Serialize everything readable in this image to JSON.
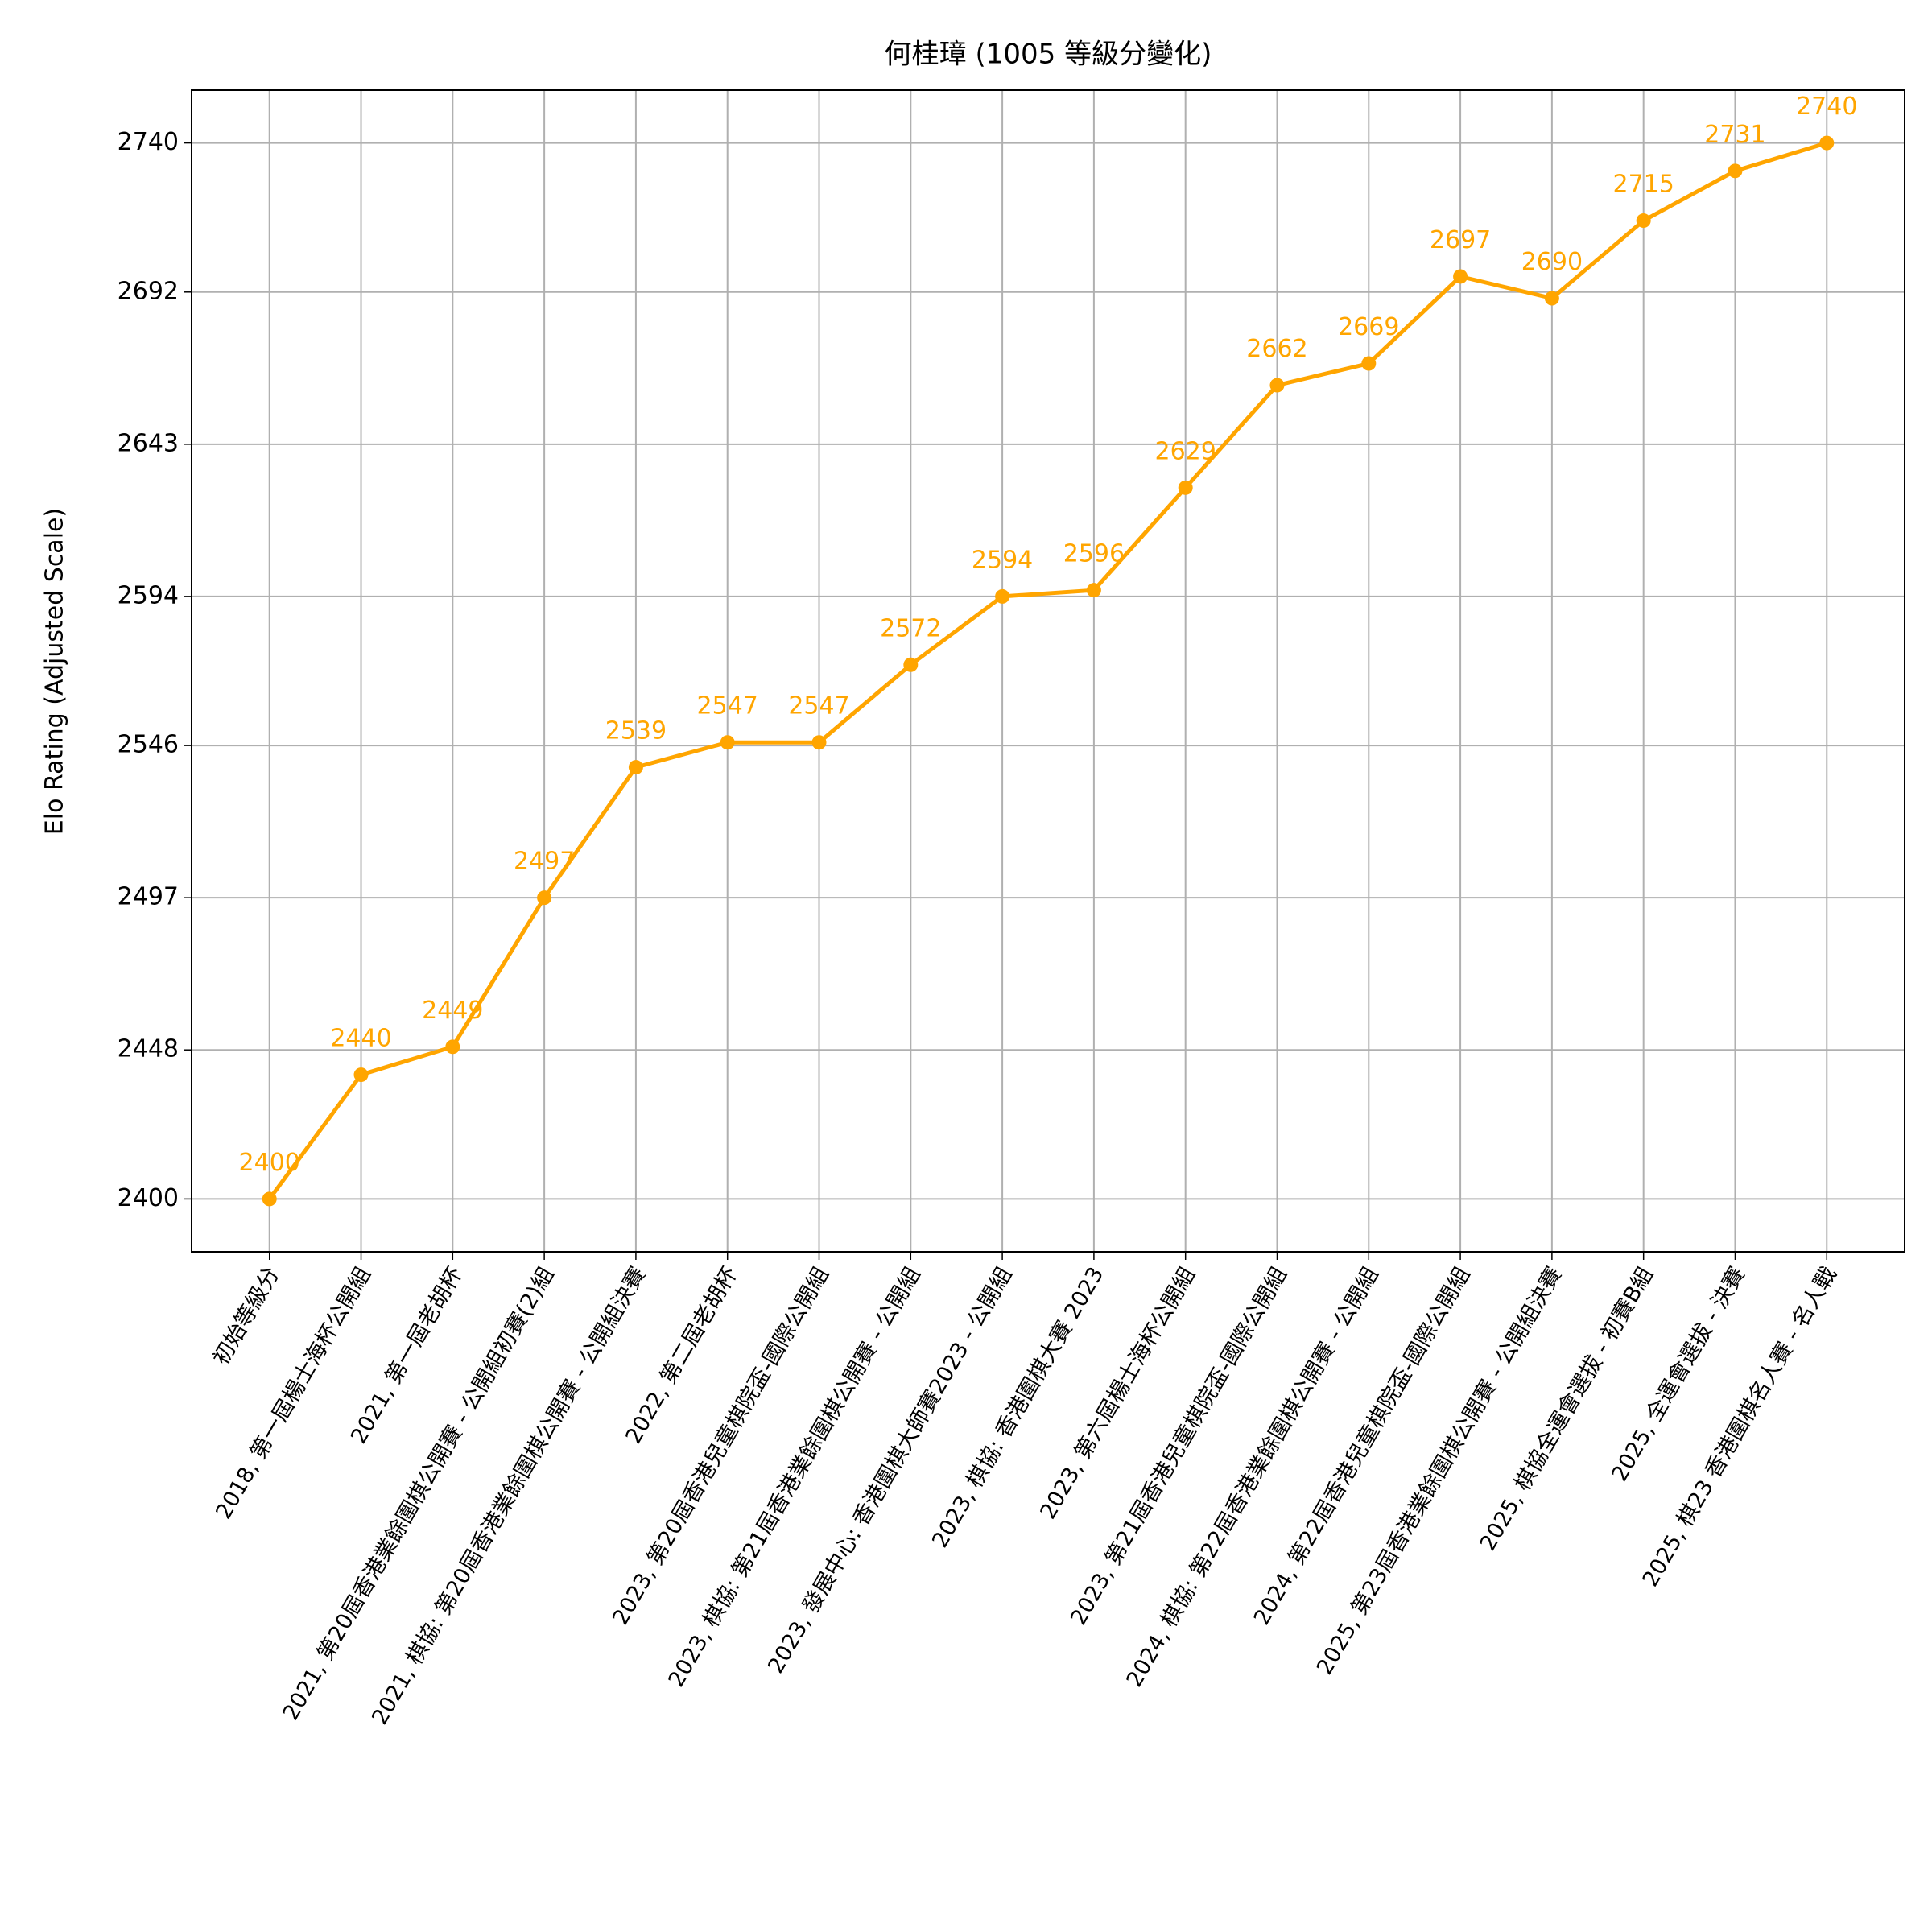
{
  "chart_data": {
    "type": "line",
    "title": "何桂璋 (1005 等級分變化)",
    "ylabel": "Elo Rating (Adjusted Scale)",
    "categories": [
      "初始等級分",
      "2018, 第一屆楊士海杯公開組",
      "2021, 第一屆老胡杯",
      "2021, 第20屆香港業餘圍棋公開賽 - 公開組初賽(2)組",
      "2021, 棋協: 第20屆香港業餘圍棋公開賽 - 公開組決賽",
      "2022, 第二屆老胡杯",
      "2023, 第20屆香港兒童棋院盃-國際公開組",
      "2023, 棋協: 第21屆香港業餘圍棋公開賽 - 公開組",
      "2023, 發展中心: 香港圍棋大師賽2023 - 公開組",
      "2023, 棋協: 香港圍棋大賽 2023",
      "2023, 第六屆楊士海杯公開組",
      "2023, 第21屆香港兒童棋院盃-國際公開組",
      "2024, 棋協: 第22屆香港業餘圍棋公開賽 - 公開組",
      "2024, 第22屆香港兒童棋院盃-國際公開組",
      "2025, 第23屆香港業餘圍棋公開賽 - 公開組決賽",
      "2025, 棋協全運會選拔 - 初賽B組",
      "2025, 全運會選拔 - 決賽",
      "2025, 棋23 香港圍棋名人賽 - 名人戰"
    ],
    "series": [
      {
        "name": "何桂璋",
        "color": "#ffa500",
        "values": [
          2400,
          2440,
          2449,
          2497,
          2539,
          2547,
          2547,
          2572,
          2594,
          2596,
          2629,
          2662,
          2669,
          2697,
          2690,
          2715,
          2731,
          2740
        ]
      }
    ],
    "ylim": [
      2383,
      2757
    ],
    "yticks": [
      2400,
      2448,
      2497,
      2546,
      2594,
      2643,
      2692,
      2740
    ],
    "grid": true
  }
}
